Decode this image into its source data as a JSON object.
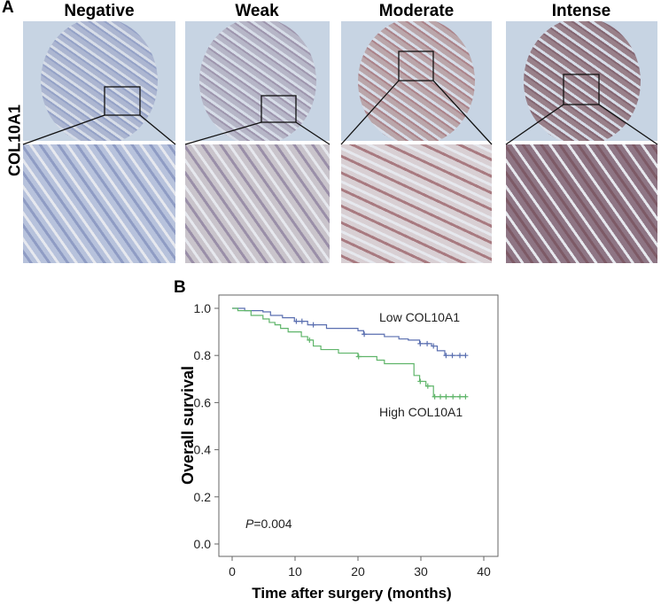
{
  "panel_a": {
    "letter": "A",
    "row_label": "COL10A1",
    "columns": [
      {
        "title": "Negative",
        "core_color": "#a9b3cf",
        "detail_color": "#b7c2dc",
        "stain": "#8f9cc4"
      },
      {
        "title": "Weak",
        "core_color": "#b4b3c4",
        "detail_color": "#c9c4cb",
        "stain": "#9a8fa8"
      },
      {
        "title": "Moderate",
        "core_color": "#b8a1a4",
        "detail_color": "#d8cfd3",
        "stain": "#a87a80"
      },
      {
        "title": "Intense",
        "core_color": "#93767f",
        "detail_color": "#8e7584",
        "stain": "#7d5a66"
      }
    ]
  },
  "panel_b": {
    "letter": "B"
  },
  "chart_data": {
    "type": "line",
    "subtype": "kaplan-meier",
    "xlabel": "Time after surgery (months)",
    "ylabel": "Overall survival",
    "xlim": [
      0,
      40
    ],
    "ylim": [
      0,
      1.0
    ],
    "xticks": [
      "0",
      "10",
      "20",
      "30",
      "40"
    ],
    "yticks": [
      "0.0",
      "0.2",
      "0.4",
      "0.6",
      "0.8",
      "1.0"
    ],
    "grid": false,
    "annotation": {
      "p_label": "P",
      "p_value": "=0.004"
    },
    "series": [
      {
        "name": "Low COL10A1",
        "color": "#5a6fb0",
        "steps": [
          [
            0,
            1.0
          ],
          [
            2,
            0.99
          ],
          [
            4.9,
            0.985
          ],
          [
            6.1,
            0.97
          ],
          [
            8,
            0.96
          ],
          [
            9.9,
            0.945
          ],
          [
            12,
            0.93
          ],
          [
            15,
            0.915
          ],
          [
            20,
            0.905
          ],
          [
            20.9,
            0.89
          ],
          [
            24.2,
            0.88
          ],
          [
            26.5,
            0.87
          ],
          [
            28,
            0.865
          ],
          [
            29.8,
            0.85
          ],
          [
            31.7,
            0.84
          ],
          [
            32.6,
            0.82
          ],
          [
            33.8,
            0.8
          ]
        ],
        "end": 37.1,
        "censored": [
          [
            10.2,
            0.945
          ],
          [
            11.1,
            0.945
          ],
          [
            12.9,
            0.93
          ],
          [
            21,
            0.89
          ],
          [
            29.9,
            0.85
          ],
          [
            31,
            0.85
          ],
          [
            32,
            0.84
          ],
          [
            34,
            0.8
          ],
          [
            35,
            0.8
          ],
          [
            36.2,
            0.8
          ],
          [
            37.1,
            0.8
          ]
        ]
      },
      {
        "name": "High COL10A1",
        "color": "#5fb56a",
        "steps": [
          [
            0,
            1.0
          ],
          [
            0.9,
            0.99
          ],
          [
            3,
            0.97
          ],
          [
            4.9,
            0.955
          ],
          [
            5.9,
            0.94
          ],
          [
            6.8,
            0.93
          ],
          [
            7.7,
            0.915
          ],
          [
            8.9,
            0.9
          ],
          [
            11,
            0.88
          ],
          [
            12,
            0.865
          ],
          [
            12.9,
            0.84
          ],
          [
            14.1,
            0.825
          ],
          [
            16.9,
            0.81
          ],
          [
            20,
            0.795
          ],
          [
            23,
            0.78
          ],
          [
            24.2,
            0.765
          ],
          [
            28.9,
            0.715
          ],
          [
            29.8,
            0.69
          ],
          [
            30.8,
            0.67
          ],
          [
            32,
            0.625
          ]
        ],
        "end": 37.1,
        "censored": [
          [
            12.3,
            0.865
          ],
          [
            20.1,
            0.795
          ],
          [
            29.9,
            0.69
          ],
          [
            31.1,
            0.67
          ],
          [
            32.2,
            0.625
          ],
          [
            33.1,
            0.625
          ],
          [
            34,
            0.625
          ],
          [
            35.1,
            0.625
          ],
          [
            36.2,
            0.625
          ],
          [
            37.1,
            0.625
          ]
        ]
      }
    ]
  }
}
